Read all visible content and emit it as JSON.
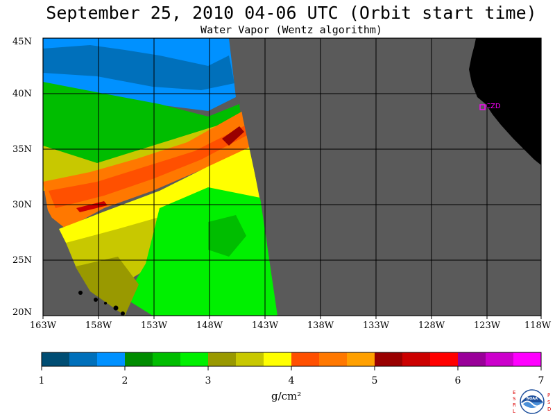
{
  "header": {
    "title": "September 25, 2010  04-06 UTC  (Orbit start time)",
    "subtitle": "Water Vapor (Wentz algorithm)"
  },
  "map": {
    "lat_labels": [
      "45N",
      "40N",
      "35N",
      "30N",
      "25N",
      "20N"
    ],
    "lon_labels": [
      "163W",
      "158W",
      "153W",
      "148W",
      "143W",
      "138W",
      "133W",
      "128W",
      "123W",
      "118W"
    ],
    "station_label": "CZD",
    "colors": {
      "no_data": "#5a5a5a",
      "land": "#000000",
      "grid": "#000000",
      "station": "#ff00ff"
    }
  },
  "colorbar": {
    "colors": [
      "#004d73",
      "#0070bb",
      "#0091ff",
      "#008c00",
      "#00bd00",
      "#00f000",
      "#999900",
      "#c8c800",
      "#ffff00",
      "#ff5000",
      "#ff7800",
      "#ffa000",
      "#990000",
      "#cc0000",
      "#ff0000",
      "#990099",
      "#cc00cc",
      "#ff00ff"
    ],
    "ticks": [
      "1",
      "2",
      "3",
      "4",
      "5",
      "6",
      "7"
    ],
    "units": "g/cm²"
  },
  "logo": {
    "left_letters": "ESRL",
    "right_letters": "PSD",
    "center_text": "NOAA"
  }
}
